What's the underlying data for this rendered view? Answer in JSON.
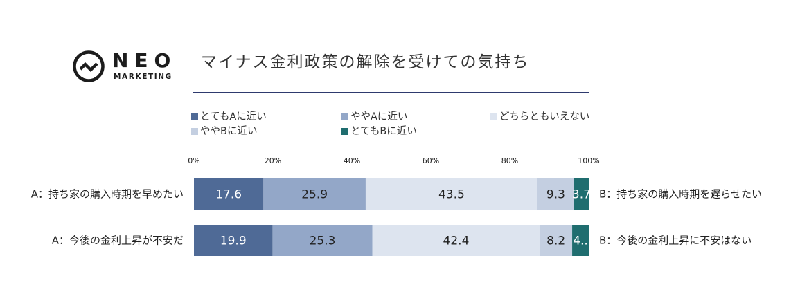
{
  "logo": {
    "word": "NEO",
    "sub": "MARKETING"
  },
  "header": {
    "title": "マイナス金利政策の解除を受けての気持ち"
  },
  "colors": {
    "rule": "#2e3a6e",
    "segments": [
      "#4f6a96",
      "#93a7c8",
      "#dde4ef",
      "#c4cfe1",
      "#1f6d6f"
    ],
    "text_dark": "#222222",
    "text_light": "#ffffff"
  },
  "chart_data": {
    "type": "bar",
    "orientation": "horizontal",
    "stacked": true,
    "categories": [
      "A：持ち家の購入時期を早めたい",
      "A：今後の金利上昇が不安だ"
    ],
    "opposite_labels": [
      "B：持ち家の購入時期を遅らせたい",
      "B：今後の金利上昇に不安はない"
    ],
    "series": [
      {
        "name": "とてもAに近い",
        "values": [
          17.6,
          19.9
        ]
      },
      {
        "name": "ややAに近い",
        "values": [
          25.9,
          25.3
        ]
      },
      {
        "name": "どちらともいえない",
        "values": [
          43.5,
          42.4
        ]
      },
      {
        "name": "ややBに近い",
        "values": [
          9.3,
          8.2
        ]
      },
      {
        "name": "とてもBに近い",
        "values": [
          3.7,
          4.2
        ]
      }
    ],
    "value_labels": [
      [
        "17.6",
        "25.9",
        "43.5",
        "9.3",
        "3.7"
      ],
      [
        "19.9",
        "25.3",
        "42.4",
        "8.2",
        "4.."
      ]
    ],
    "xlim": [
      0,
      100
    ],
    "x_ticks": [
      0,
      20,
      40,
      60,
      80,
      100
    ],
    "x_tick_labels": [
      "0%",
      "20%",
      "40%",
      "60%",
      "80%",
      "100%"
    ],
    "legend_position": "top",
    "grid": false
  }
}
